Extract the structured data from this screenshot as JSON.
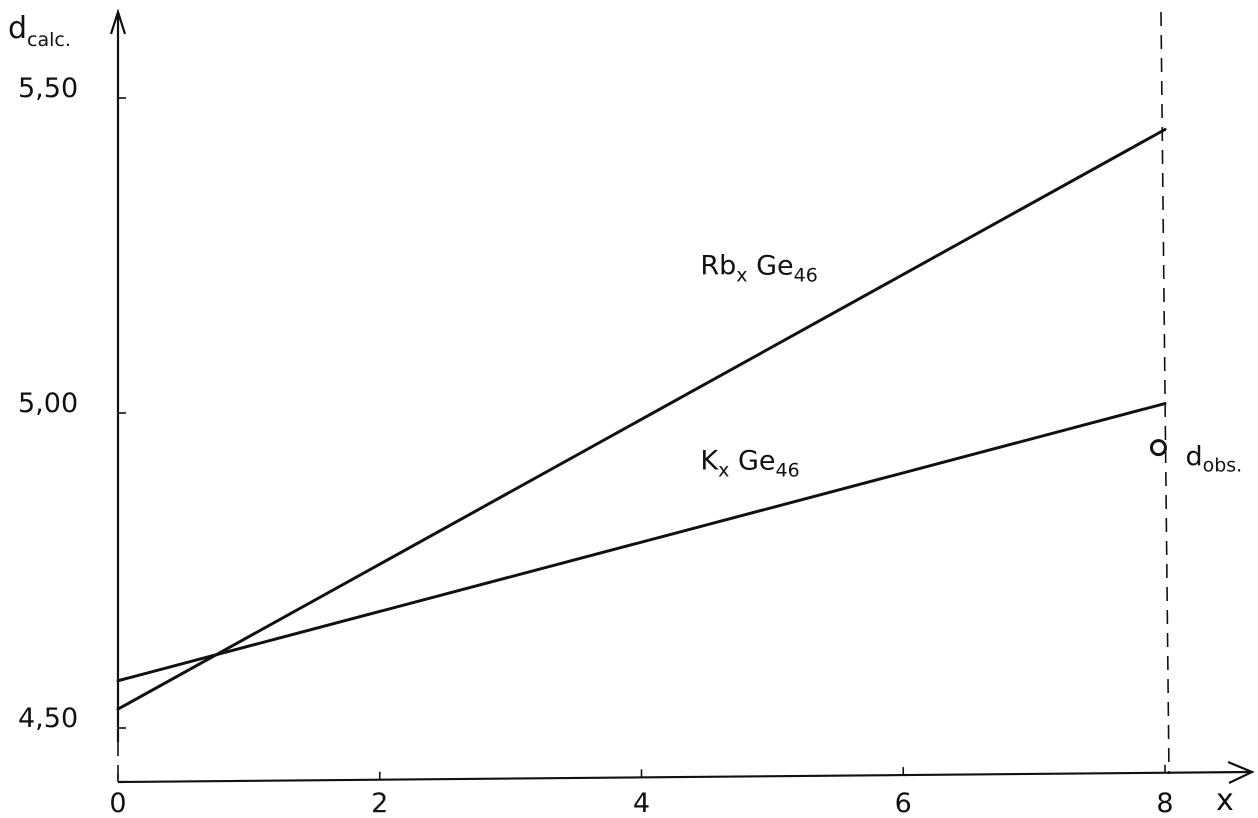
{
  "chart_data": {
    "type": "line",
    "title": "",
    "xlabel": "x",
    "ylabel": {
      "main": "d",
      "sub": "calc."
    },
    "xlim": [
      0,
      8
    ],
    "ylim": [
      4.48,
      5.55
    ],
    "grid": false,
    "x_ticks": [
      {
        "value": 0,
        "label": "0"
      },
      {
        "value": 2,
        "label": "2"
      },
      {
        "value": 4,
        "label": "4"
      },
      {
        "value": 6,
        "label": "6"
      },
      {
        "value": 8,
        "label": "8"
      }
    ],
    "y_ticks": [
      {
        "value": 4.5,
        "label": "4,50"
      },
      {
        "value": 5.0,
        "label": "5,00"
      },
      {
        "value": 5.5,
        "label": "5,50"
      }
    ],
    "series": [
      {
        "key": "rb",
        "name_main": "Rb",
        "name_sub1": "x",
        "name_mid": " Ge",
        "name_sub2": "46",
        "x": [
          0,
          8
        ],
        "y": [
          4.53,
          5.45
        ],
        "label_at": [
          4.45,
          5.22
        ]
      },
      {
        "key": "k",
        "name_main": "K",
        "name_sub1": "x",
        "name_mid": " Ge",
        "name_sub2": "46",
        "x": [
          0,
          8
        ],
        "y": [
          4.575,
          5.015
        ],
        "label_at": [
          4.45,
          4.91
        ]
      }
    ],
    "observed": {
      "label_main": "d",
      "label_sub": "obs.",
      "x": 7.95,
      "y": 4.945
    },
    "reference_line_x": 8
  }
}
